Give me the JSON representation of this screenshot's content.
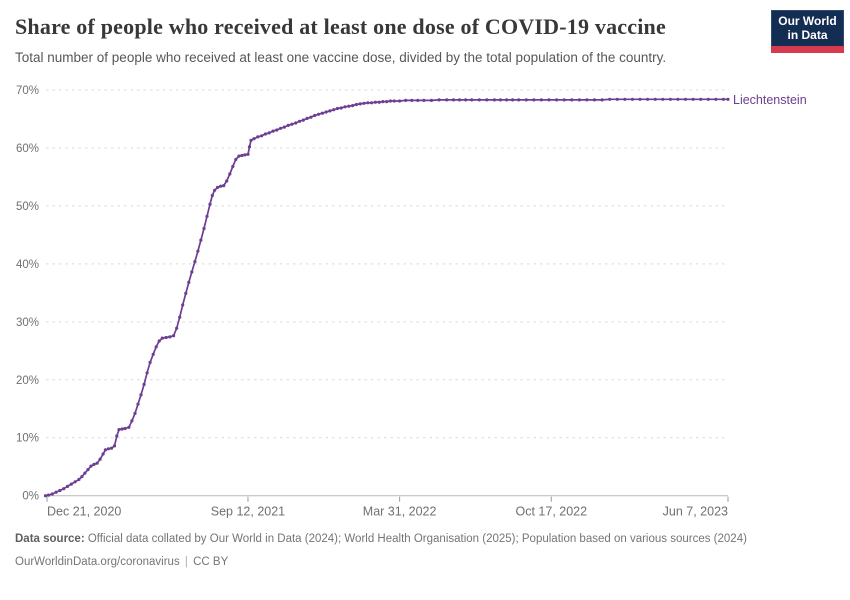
{
  "header": {
    "title": "Share of people who received at least one dose of COVID-19 vaccine",
    "subtitle": "Total number of people who received at least one vaccine dose, divided by the total population of the country.",
    "logo": {
      "line1": "Our World",
      "line2": "in Data"
    }
  },
  "chart_data": {
    "type": "line",
    "title": "Share of people who received at least one dose of COVID-19 vaccine",
    "xlabel": "",
    "ylabel": "",
    "unit": "%",
    "ylim": [
      0,
      70
    ],
    "grid": true,
    "legend_position": "end-of-line",
    "y_ticks": [
      0,
      10,
      20,
      30,
      40,
      50,
      60,
      70
    ],
    "x_ticks": [
      {
        "date": "2020-12-21",
        "label": "Dec 21, 2020"
      },
      {
        "date": "2021-09-12",
        "label": "Sep 12, 2021"
      },
      {
        "date": "2022-03-31",
        "label": "Mar 31, 2022"
      },
      {
        "date": "2022-10-17",
        "label": "Oct 17, 2022"
      },
      {
        "date": "2023-06-07",
        "label": "Jun 7, 2023"
      }
    ],
    "x_range": [
      "2020-12-19",
      "2023-06-07"
    ],
    "series": [
      {
        "name": "Liechtenstein",
        "color": "#6d3e91",
        "points": [
          [
            "2020-12-19",
            0
          ],
          [
            "2020-12-23",
            0.1
          ],
          [
            "2020-12-28",
            0.3
          ],
          [
            "2021-01-02",
            0.6
          ],
          [
            "2021-01-07",
            0.9
          ],
          [
            "2021-01-12",
            1.2
          ],
          [
            "2021-01-17",
            1.6
          ],
          [
            "2021-01-22",
            2.0
          ],
          [
            "2021-01-27",
            2.4
          ],
          [
            "2021-02-01",
            2.8
          ],
          [
            "2021-02-05",
            3.3
          ],
          [
            "2021-02-09",
            3.9
          ],
          [
            "2021-02-13",
            4.5
          ],
          [
            "2021-02-17",
            5.1
          ],
          [
            "2021-02-21",
            5.4
          ],
          [
            "2021-02-25",
            5.6
          ],
          [
            "2021-03-01",
            6.3
          ],
          [
            "2021-03-05",
            7.2
          ],
          [
            "2021-03-08",
            7.9
          ],
          [
            "2021-03-12",
            8.1
          ],
          [
            "2021-03-16",
            8.2
          ],
          [
            "2021-03-20",
            8.6
          ],
          [
            "2021-03-23",
            10.3
          ],
          [
            "2021-03-26",
            11.4
          ],
          [
            "2021-03-30",
            11.5
          ],
          [
            "2021-04-03",
            11.6
          ],
          [
            "2021-04-08",
            11.8
          ],
          [
            "2021-04-12",
            12.9
          ],
          [
            "2021-04-16",
            14.2
          ],
          [
            "2021-04-20",
            15.8
          ],
          [
            "2021-04-24",
            17.4
          ],
          [
            "2021-04-28",
            19.2
          ],
          [
            "2021-05-02",
            21.2
          ],
          [
            "2021-05-06",
            23.0
          ],
          [
            "2021-05-10",
            24.4
          ],
          [
            "2021-05-14",
            25.7
          ],
          [
            "2021-05-18",
            26.7
          ],
          [
            "2021-05-22",
            27.2
          ],
          [
            "2021-05-27",
            27.3
          ],
          [
            "2021-06-01",
            27.4
          ],
          [
            "2021-06-06",
            27.6
          ],
          [
            "2021-06-10",
            28.9
          ],
          [
            "2021-06-14",
            30.8
          ],
          [
            "2021-06-18",
            32.9
          ],
          [
            "2021-06-22",
            34.9
          ],
          [
            "2021-06-26",
            36.8
          ],
          [
            "2021-06-30",
            38.6
          ],
          [
            "2021-07-04",
            40.4
          ],
          [
            "2021-07-08",
            42.2
          ],
          [
            "2021-07-12",
            44.1
          ],
          [
            "2021-07-16",
            46.1
          ],
          [
            "2021-07-20",
            48.2
          ],
          [
            "2021-07-24",
            50.3
          ],
          [
            "2021-07-27",
            51.8
          ],
          [
            "2021-07-30",
            52.7
          ],
          [
            "2021-08-03",
            53.2
          ],
          [
            "2021-08-07",
            53.4
          ],
          [
            "2021-08-11",
            53.5
          ],
          [
            "2021-08-15",
            54.3
          ],
          [
            "2021-08-19",
            55.5
          ],
          [
            "2021-08-23",
            56.8
          ],
          [
            "2021-08-27",
            58.0
          ],
          [
            "2021-08-31",
            58.6
          ],
          [
            "2021-09-04",
            58.7
          ],
          [
            "2021-09-08",
            58.8
          ],
          [
            "2021-09-12",
            58.9
          ],
          [
            "2021-09-14",
            60.2
          ],
          [
            "2021-09-16",
            61.3
          ],
          [
            "2021-09-20",
            61.6
          ],
          [
            "2021-09-25",
            61.9
          ],
          [
            "2021-09-30",
            62.1
          ],
          [
            "2021-10-05",
            62.4
          ],
          [
            "2021-10-10",
            62.6
          ],
          [
            "2021-10-15",
            62.9
          ],
          [
            "2021-10-20",
            63.1
          ],
          [
            "2021-10-25",
            63.4
          ],
          [
            "2021-10-30",
            63.6
          ],
          [
            "2021-11-04",
            63.9
          ],
          [
            "2021-11-09",
            64.1
          ],
          [
            "2021-11-14",
            64.3
          ],
          [
            "2021-11-19",
            64.6
          ],
          [
            "2021-11-24",
            64.8
          ],
          [
            "2021-11-29",
            65.1
          ],
          [
            "2021-12-04",
            65.3
          ],
          [
            "2021-12-09",
            65.6
          ],
          [
            "2021-12-14",
            65.8
          ],
          [
            "2021-12-19",
            66.0
          ],
          [
            "2021-12-24",
            66.2
          ],
          [
            "2021-12-29",
            66.4
          ],
          [
            "2022-01-03",
            66.6
          ],
          [
            "2022-01-08",
            66.8
          ],
          [
            "2022-01-13",
            66.9
          ],
          [
            "2022-01-18",
            67.1
          ],
          [
            "2022-01-23",
            67.2
          ],
          [
            "2022-01-28",
            67.3
          ],
          [
            "2022-02-02",
            67.5
          ],
          [
            "2022-02-07",
            67.6
          ],
          [
            "2022-02-12",
            67.7
          ],
          [
            "2022-02-17",
            67.8
          ],
          [
            "2022-02-22",
            67.8
          ],
          [
            "2022-02-27",
            67.9
          ],
          [
            "2022-03-04",
            67.9
          ],
          [
            "2022-03-09",
            68.0
          ],
          [
            "2022-03-14",
            68.0
          ],
          [
            "2022-03-19",
            68.1
          ],
          [
            "2022-03-24",
            68.1
          ],
          [
            "2022-03-31",
            68.1
          ],
          [
            "2022-04-08",
            68.2
          ],
          [
            "2022-04-16",
            68.2
          ],
          [
            "2022-04-24",
            68.2
          ],
          [
            "2022-05-02",
            68.2
          ],
          [
            "2022-05-12",
            68.2
          ],
          [
            "2022-05-22",
            68.3
          ],
          [
            "2022-06-01",
            68.3
          ],
          [
            "2022-06-10",
            68.3
          ],
          [
            "2022-06-18",
            68.3
          ],
          [
            "2022-06-26",
            68.3
          ],
          [
            "2022-07-04",
            68.3
          ],
          [
            "2022-07-14",
            68.3
          ],
          [
            "2022-07-24",
            68.3
          ],
          [
            "2022-08-03",
            68.3
          ],
          [
            "2022-08-11",
            68.3
          ],
          [
            "2022-08-19",
            68.3
          ],
          [
            "2022-08-27",
            68.3
          ],
          [
            "2022-09-04",
            68.3
          ],
          [
            "2022-09-14",
            68.3
          ],
          [
            "2022-09-24",
            68.3
          ],
          [
            "2022-10-04",
            68.3
          ],
          [
            "2022-10-14",
            68.3
          ],
          [
            "2022-10-24",
            68.3
          ],
          [
            "2022-11-03",
            68.3
          ],
          [
            "2022-11-13",
            68.3
          ],
          [
            "2022-11-23",
            68.3
          ],
          [
            "2022-12-03",
            68.3
          ],
          [
            "2022-12-13",
            68.3
          ],
          [
            "2022-12-23",
            68.3
          ],
          [
            "2023-01-02",
            68.4
          ],
          [
            "2023-01-12",
            68.4
          ],
          [
            "2023-01-22",
            68.4
          ],
          [
            "2023-02-01",
            68.4
          ],
          [
            "2023-02-11",
            68.4
          ],
          [
            "2023-02-21",
            68.4
          ],
          [
            "2023-03-03",
            68.4
          ],
          [
            "2023-03-13",
            68.4
          ],
          [
            "2023-03-23",
            68.4
          ],
          [
            "2023-04-02",
            68.4
          ],
          [
            "2023-04-12",
            68.4
          ],
          [
            "2023-04-22",
            68.4
          ],
          [
            "2023-05-02",
            68.4
          ],
          [
            "2023-05-12",
            68.4
          ],
          [
            "2023-05-22",
            68.4
          ],
          [
            "2023-06-01",
            68.4
          ],
          [
            "2023-06-07",
            68.4
          ]
        ]
      }
    ]
  },
  "footer": {
    "source_label": "Data source:",
    "source_text": " Official data collated by Our World in Data (2024); World Health Organisation (2025); Population based on various sources (2024)",
    "link": "OurWorldinData.org/coronavirus",
    "separator": "|",
    "license": "CC BY"
  },
  "colors": {
    "line": "#6d3e91",
    "grid": "#d9d9d9",
    "axis": "#b9b9b9",
    "tick": "#9a9a9a",
    "axis_text": "#707070",
    "logo_bg": "#132e52",
    "logo_accent": "#d63a4f"
  }
}
